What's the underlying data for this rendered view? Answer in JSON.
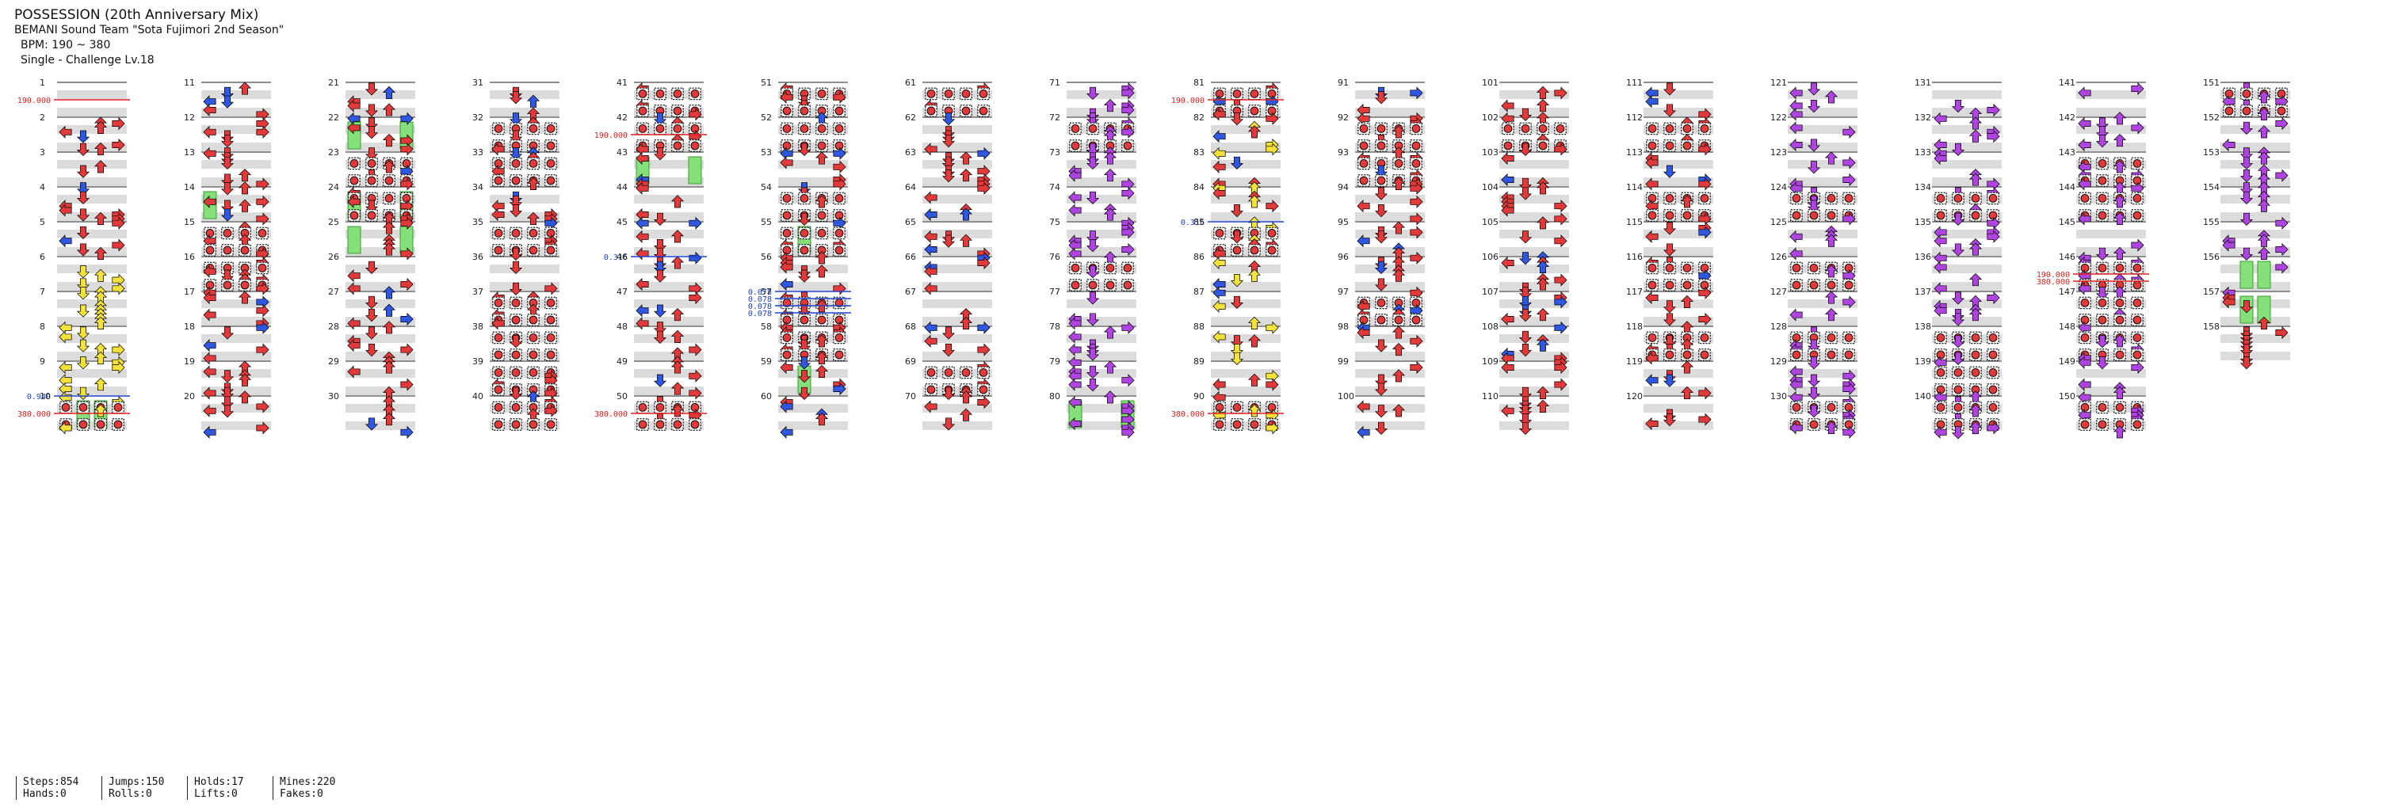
{
  "header": {
    "title": "POSSESSION (20th Anniversary Mix)",
    "artist": "BEMANI Sound Team \"Sota Fujimori 2nd Season\"",
    "bpm": "BPM: 190 ~ 380",
    "difficulty": "Single - Challenge Lv.18"
  },
  "colors": {
    "red": "#e23a3a",
    "blue": "#2f57e0",
    "yellow": "#f2e23a",
    "purple": "#b044e0",
    "green": "#86e07a",
    "band": "#dcdcdc",
    "bpm_marker": "#e02020",
    "stop_marker": "#2040d0"
  },
  "icons": [
    "arrow-left-icon",
    "arrow-down-icon",
    "arrow-up-icon",
    "arrow-right-icon",
    "mine-icon",
    "hold-icon"
  ],
  "measures": {
    "first": 1,
    "last": 158,
    "per_column": 10
  },
  "markers": [
    {
      "measure": 1,
      "type": "bpm",
      "label": "190.000"
    },
    {
      "measure": 10,
      "type": "stop",
      "label": "0.940"
    },
    {
      "measure": 10,
      "type": "bpm",
      "label": "380.000"
    },
    {
      "measure": 42,
      "type": "bpm",
      "label": "190.000"
    },
    {
      "measure": 46,
      "type": "stop",
      "label": "0.316"
    },
    {
      "measure": 50,
      "type": "bpm",
      "label": "380.000"
    },
    {
      "measure": 57,
      "type": "stop",
      "label": "0.078"
    },
    {
      "measure": 57,
      "type": "stop",
      "label": "0.078"
    },
    {
      "measure": 57,
      "type": "stop",
      "label": "0.078"
    },
    {
      "measure": 57,
      "type": "stop",
      "label": "0.078"
    },
    {
      "measure": 81,
      "type": "bpm",
      "label": "190.000"
    },
    {
      "measure": 85,
      "type": "stop",
      "label": "0.316"
    },
    {
      "measure": 90,
      "type": "bpm",
      "label": "380.000"
    },
    {
      "measure": 146,
      "type": "bpm",
      "label": "190.000"
    },
    {
      "measure": 146,
      "type": "bpm",
      "label": "380.000"
    }
  ],
  "stats": [
    {
      "top": "Steps:854",
      "bottom": "Hands:0"
    },
    {
      "top": "Jumps:150",
      "bottom": "Rolls:0"
    },
    {
      "top": "Holds:17",
      "bottom": "Lifts:0"
    },
    {
      "top": "Mines:220",
      "bottom": "Fakes:0"
    }
  ]
}
